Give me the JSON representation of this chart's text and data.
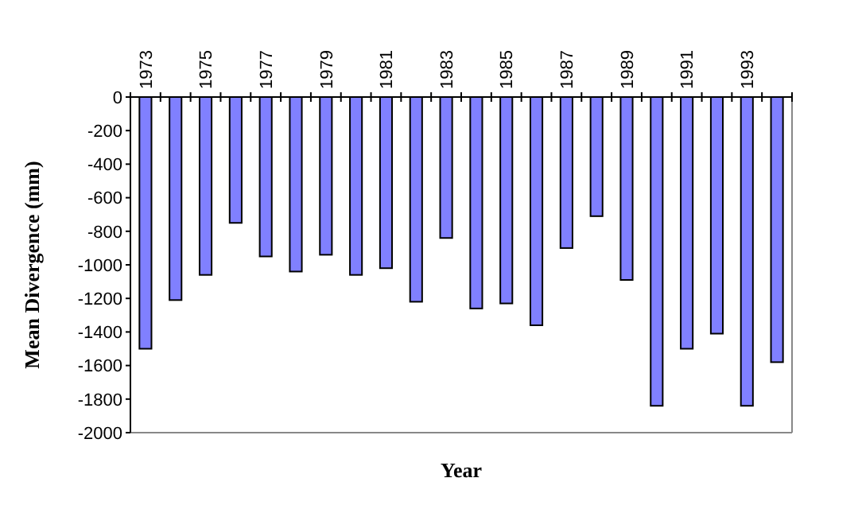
{
  "chart_data": {
    "type": "bar",
    "xlabel": "Year",
    "ylabel": "Mean Divergence (mm)",
    "categories": [
      "1973",
      null,
      "1975",
      null,
      "1977",
      null,
      "1979",
      null,
      "1981",
      null,
      "1983",
      null,
      "1985",
      null,
      "1987",
      null,
      "1989",
      null,
      "1991",
      null,
      "1993",
      null
    ],
    "values": [
      -1500,
      -1210,
      -1060,
      -750,
      -950,
      -1040,
      -940,
      -1060,
      -1020,
      -1220,
      -840,
      -1260,
      -1230,
      -1360,
      -900,
      -710,
      -1090,
      -1840,
      -1500,
      -1410,
      -1840,
      -1580
    ],
    "color": "#8080ff",
    "ylim": [
      -2000,
      0
    ],
    "yticks": [
      -2000,
      -1800,
      -1600,
      -1400,
      -1200,
      -1000,
      -800,
      -600,
      -400,
      -200,
      0
    ],
    "grid": false
  }
}
